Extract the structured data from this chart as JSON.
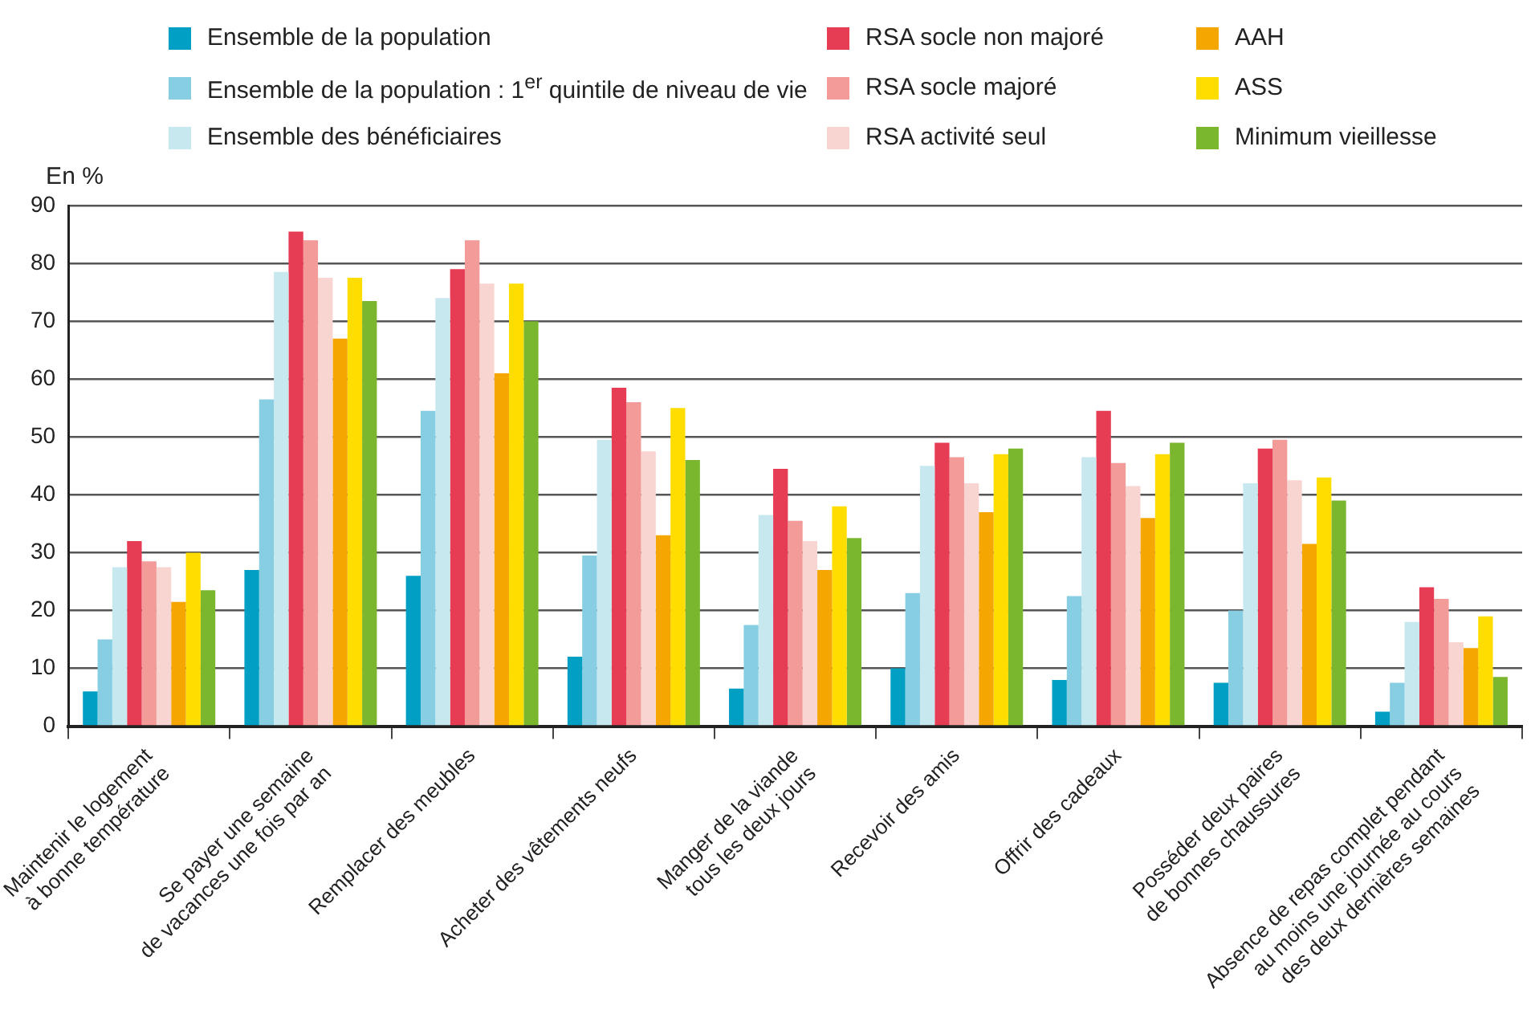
{
  "chart_data": {
    "type": "bar",
    "ylabel": "En %",
    "categories": [
      "Maintenir le logement\nà bonne température",
      "Se payer une semaine\nde vacances une fois par an",
      "Remplacer des meubles",
      "Acheter des vêtements neufs",
      "Manger de la viande\ntous les deux jours",
      "Recevoir des amis",
      "Offrir des cadeaux",
      "Posséder deux paires\nde bonnes chaussures",
      "Absence de repas complet pendant\nau moins une journée au cours\ndes deux dernières semaines"
    ],
    "series": [
      {
        "name": "Ensemble de la population",
        "color": "#009fc3",
        "values": [
          6,
          27,
          26,
          12,
          6.5,
          10,
          8,
          7.5,
          2.5
        ]
      },
      {
        "name": "Ensemble de la population : 1$^{er}$ quintile de niveau de vie",
        "color": "#87cee3",
        "values": [
          15,
          56.5,
          54.5,
          29.5,
          17.5,
          23,
          22.5,
          20,
          7.5
        ]
      },
      {
        "name": "Ensemble des bénéficiaires",
        "color": "#c8e8f0",
        "values": [
          27.5,
          78.5,
          74,
          49.5,
          36.5,
          45,
          46.5,
          42,
          18
        ]
      },
      {
        "name": "RSA socle non majoré",
        "color": "#e63d55",
        "values": [
          32,
          85.5,
          79,
          58.5,
          44.5,
          49,
          54.5,
          48,
          24
        ]
      },
      {
        "name": "RSA socle majoré",
        "color": "#f29b98",
        "values": [
          28.5,
          84,
          84,
          56,
          35.5,
          46.5,
          45.5,
          49.5,
          22
        ]
      },
      {
        "name": "RSA activité seul",
        "color": "#f9d5d2",
        "values": [
          27.5,
          77.5,
          76.5,
          47.5,
          32,
          42,
          41.5,
          42.5,
          14.5
        ]
      },
      {
        "name": "AAH",
        "color": "#f5a600",
        "values": [
          21.5,
          67,
          61,
          33,
          27,
          37,
          36,
          31.5,
          13.5
        ]
      },
      {
        "name": "ASS",
        "color": "#ffdd00",
        "values": [
          30,
          77.5,
          76.5,
          55,
          38,
          47,
          47,
          43,
          19
        ]
      },
      {
        "name": "Minimum vieillesse",
        "color": "#7ab62e",
        "values": [
          23.5,
          73.5,
          70,
          46,
          32.5,
          48,
          49,
          39,
          8.5
        ]
      }
    ],
    "ylim": [
      0,
      90
    ],
    "yticks": [
      0,
      10,
      20,
      30,
      40,
      50,
      60,
      70,
      80,
      90
    ],
    "grid": "y",
    "legend": "top"
  }
}
